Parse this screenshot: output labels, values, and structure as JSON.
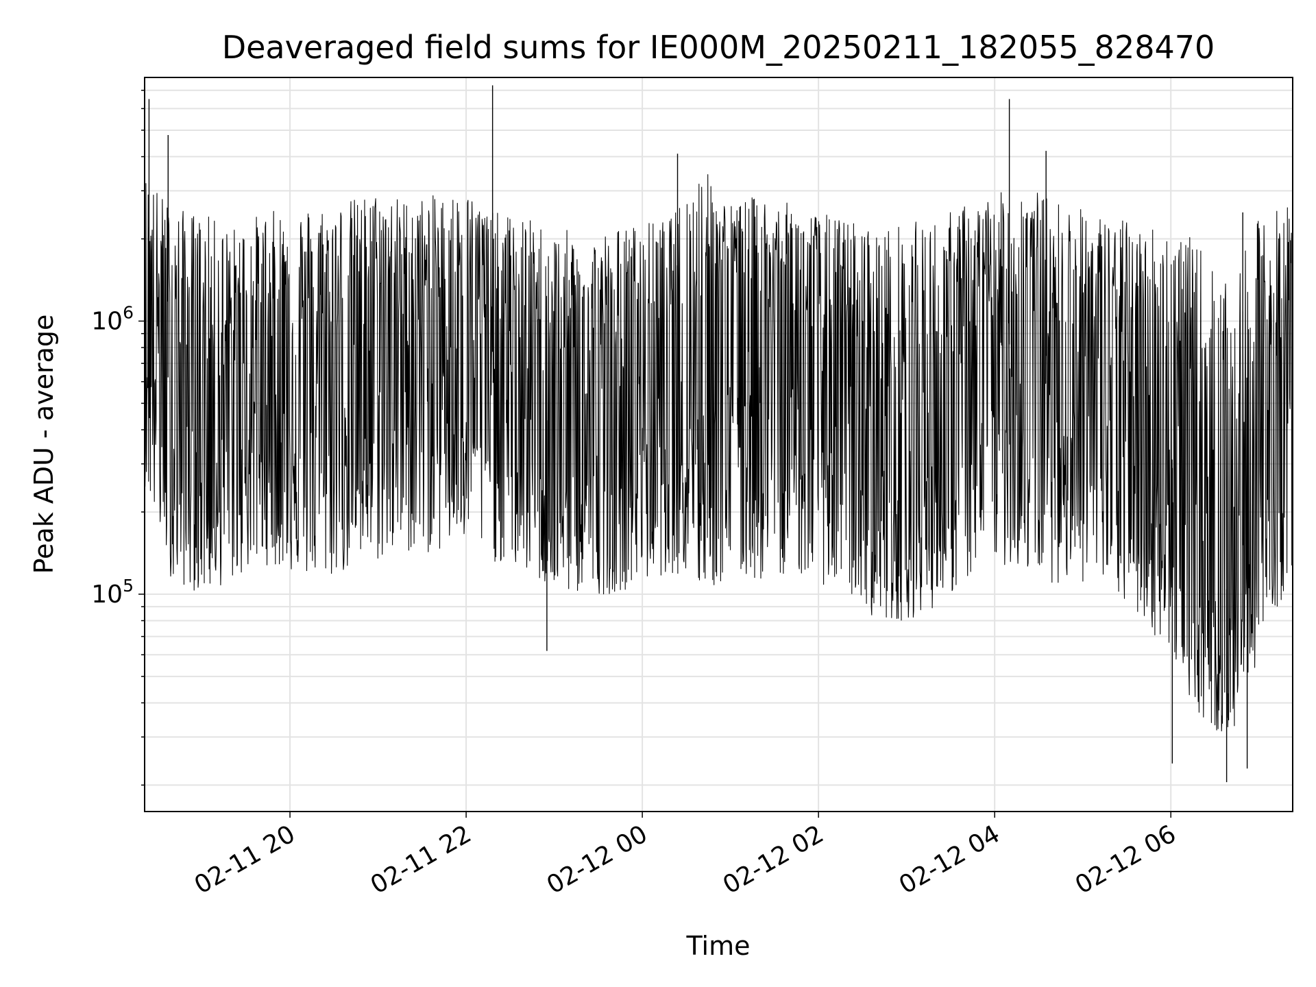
{
  "chart_data": {
    "type": "line",
    "title": "Deaveraged field sums for IE000M_20250211_182055_828470",
    "xlabel": "Time",
    "ylabel": "Peak ADU - average",
    "y_scale": "log",
    "ylim": [
      16000,
      7800000
    ],
    "xlim": [
      "2025-02-11 18:21",
      "2025-02-12 07:23"
    ],
    "grid": true,
    "x_ticks": [
      {
        "value": "2025-02-11 20:00",
        "label": "02-11 20"
      },
      {
        "value": "2025-02-11 22:00",
        "label": "02-11 22"
      },
      {
        "value": "2025-02-12 00:00",
        "label": "02-12 00"
      },
      {
        "value": "2025-02-12 02:00",
        "label": "02-12 02"
      },
      {
        "value": "2025-02-12 04:00",
        "label": "02-12 04"
      },
      {
        "value": "2025-02-12 06:00",
        "label": "02-12 06"
      }
    ],
    "y_ticks": [
      {
        "value": 100000,
        "base": "10",
        "exp": "5"
      },
      {
        "value": 1000000,
        "base": "10",
        "exp": "6"
      }
    ],
    "series": [
      {
        "color": "#000000",
        "x": [
          "2025-02-11 18:21",
          "2025-02-11 18:40",
          "2025-02-11 19:00",
          "2025-02-11 19:20",
          "2025-02-11 19:40",
          "2025-02-11 20:00",
          "2025-02-11 20:20",
          "2025-02-11 20:40",
          "2025-02-11 21:00",
          "2025-02-11 21:20",
          "2025-02-11 21:40",
          "2025-02-11 22:00",
          "2025-02-11 22:20",
          "2025-02-11 22:40",
          "2025-02-11 23:00",
          "2025-02-11 23:20",
          "2025-02-11 23:40",
          "2025-02-12 00:00",
          "2025-02-12 00:20",
          "2025-02-12 00:40",
          "2025-02-12 01:00",
          "2025-02-12 01:20",
          "2025-02-12 01:40",
          "2025-02-12 02:00",
          "2025-02-12 02:20",
          "2025-02-12 02:40",
          "2025-02-12 03:00",
          "2025-02-12 03:20",
          "2025-02-12 03:40",
          "2025-02-12 04:00",
          "2025-02-12 04:20",
          "2025-02-12 04:40",
          "2025-02-12 05:00",
          "2025-02-12 05:20",
          "2025-02-12 05:40",
          "2025-02-12 06:00",
          "2025-02-12 06:20",
          "2025-02-12 06:40",
          "2025-02-12 07:00",
          "2025-02-12 07:23"
        ],
        "y_high": [
          3500000,
          2600000,
          2500000,
          2200000,
          2500000,
          2600000,
          2700000,
          2800000,
          3000000,
          2800000,
          2900000,
          3000000,
          2500000,
          2400000,
          2200000,
          2100000,
          2200000,
          2300000,
          2400000,
          3800000,
          2700000,
          2900000,
          2700000,
          2500000,
          2400000,
          2200000,
          2300000,
          2400000,
          2700000,
          2900000,
          3200000,
          2800000,
          2600000,
          2400000,
          2300000,
          2300000,
          1900000,
          1300000,
          2400000,
          2800000
        ],
        "y_low": [
          250000,
          110000,
          100000,
          110000,
          130000,
          120000,
          110000,
          120000,
          130000,
          140000,
          140000,
          150000,
          130000,
          120000,
          100000,
          100000,
          100000,
          110000,
          120000,
          100000,
          110000,
          110000,
          120000,
          110000,
          100000,
          80000,
          80000,
          90000,
          110000,
          130000,
          120000,
          110000,
          110000,
          100000,
          80000,
          60000,
          35000,
          28000,
          60000,
          120000
        ],
        "y_mid": [
          1200000,
          550000,
          450000,
          500000,
          550000,
          650000,
          600000,
          650000,
          800000,
          900000,
          900000,
          1000000,
          750000,
          550000,
          400000,
          350000,
          400000,
          500000,
          600000,
          700000,
          900000,
          950000,
          800000,
          600000,
          450000,
          350000,
          300000,
          350000,
          550000,
          750000,
          900000,
          700000,
          600000,
          500000,
          400000,
          300000,
          150000,
          100000,
          250000,
          700000
        ],
        "spikes": [
          {
            "x": "2025-02-11 18:24",
            "y": 6500000
          },
          {
            "x": "2025-02-11 18:37",
            "y": 4800000
          },
          {
            "x": "2025-02-11 22:18",
            "y": 7300000
          },
          {
            "x": "2025-02-11 22:55",
            "y": 62000
          },
          {
            "x": "2025-02-12 00:24",
            "y": 4100000
          },
          {
            "x": "2025-02-12 04:10",
            "y": 6500000
          },
          {
            "x": "2025-02-12 04:35",
            "y": 4200000
          },
          {
            "x": "2025-02-12 06:01",
            "y": 24000
          },
          {
            "x": "2025-02-12 06:38",
            "y": 20500
          },
          {
            "x": "2025-02-12 06:52",
            "y": 23000
          },
          {
            "x": "2025-02-12 06:49",
            "y": 2500000
          }
        ]
      }
    ]
  }
}
